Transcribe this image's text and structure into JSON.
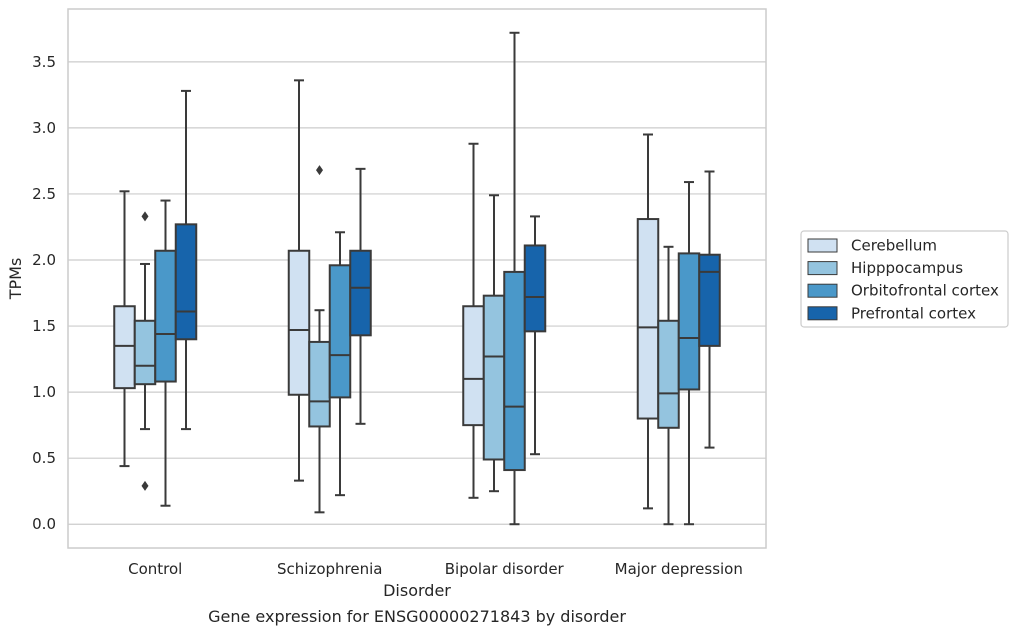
{
  "chart_data": {
    "type": "box",
    "xlabel": "Disorder",
    "ylabel": "TPMs",
    "caption": "Gene expression for ENSG00000271843 by disorder",
    "ylim": [
      -0.18,
      3.9
    ],
    "yticks": [
      "0.0",
      "0.5",
      "1.0",
      "1.5",
      "2.0",
      "2.5",
      "3.0",
      "3.5"
    ],
    "grid": "horizontal",
    "legend_position": "right",
    "categories": [
      "Control",
      "Schizophrenia",
      "Bipolar disorder",
      "Major depression"
    ],
    "series": [
      {
        "name": "Cerebellum",
        "color": "#d0e1f2",
        "boxes": [
          {
            "whislo": 0.44,
            "q1": 1.03,
            "med": 1.35,
            "q3": 1.65,
            "whishi": 2.52,
            "fliers": []
          },
          {
            "whislo": 0.33,
            "q1": 0.98,
            "med": 1.47,
            "q3": 2.07,
            "whishi": 3.36,
            "fliers": []
          },
          {
            "whislo": 0.2,
            "q1": 0.75,
            "med": 1.1,
            "q3": 1.65,
            "whishi": 2.88,
            "fliers": []
          },
          {
            "whislo": 0.12,
            "q1": 0.8,
            "med": 1.49,
            "q3": 2.31,
            "whishi": 2.95,
            "fliers": []
          }
        ]
      },
      {
        "name": "Hipppocampus",
        "color": "#94c4df",
        "boxes": [
          {
            "whislo": 0.72,
            "q1": 1.06,
            "med": 1.2,
            "q3": 1.54,
            "whishi": 1.97,
            "fliers": [
              2.33,
              0.29
            ]
          },
          {
            "whislo": 0.09,
            "q1": 0.74,
            "med": 0.93,
            "q3": 1.38,
            "whishi": 1.62,
            "fliers": [
              2.68
            ]
          },
          {
            "whislo": 0.25,
            "q1": 0.49,
            "med": 1.27,
            "q3": 1.73,
            "whishi": 2.49,
            "fliers": []
          },
          {
            "whislo": 0.0,
            "q1": 0.73,
            "med": 0.99,
            "q3": 1.54,
            "whishi": 2.1,
            "fliers": []
          }
        ]
      },
      {
        "name": "Orbitofrontal cortex",
        "color": "#4a98c9",
        "boxes": [
          {
            "whislo": 0.14,
            "q1": 1.08,
            "med": 1.44,
            "q3": 2.07,
            "whishi": 2.45,
            "fliers": []
          },
          {
            "whislo": 0.22,
            "q1": 0.96,
            "med": 1.28,
            "q3": 1.96,
            "whishi": 2.21,
            "fliers": []
          },
          {
            "whislo": 0.0,
            "q1": 0.41,
            "med": 0.89,
            "q3": 1.91,
            "whishi": 3.72,
            "fliers": []
          },
          {
            "whislo": 0.0,
            "q1": 1.02,
            "med": 1.41,
            "q3": 2.05,
            "whishi": 2.59,
            "fliers": []
          }
        ]
      },
      {
        "name": "Prefrontal cortex",
        "color": "#1764ab",
        "boxes": [
          {
            "whislo": 0.72,
            "q1": 1.4,
            "med": 1.61,
            "q3": 2.27,
            "whishi": 3.28,
            "fliers": []
          },
          {
            "whislo": 0.76,
            "q1": 1.43,
            "med": 1.79,
            "q3": 2.07,
            "whishi": 2.69,
            "fliers": []
          },
          {
            "whislo": 0.53,
            "q1": 1.46,
            "med": 1.72,
            "q3": 2.11,
            "whishi": 2.33,
            "fliers": []
          },
          {
            "whislo": 0.58,
            "q1": 1.35,
            "med": 1.91,
            "q3": 2.04,
            "whishi": 2.67,
            "fliers": []
          }
        ]
      }
    ]
  }
}
